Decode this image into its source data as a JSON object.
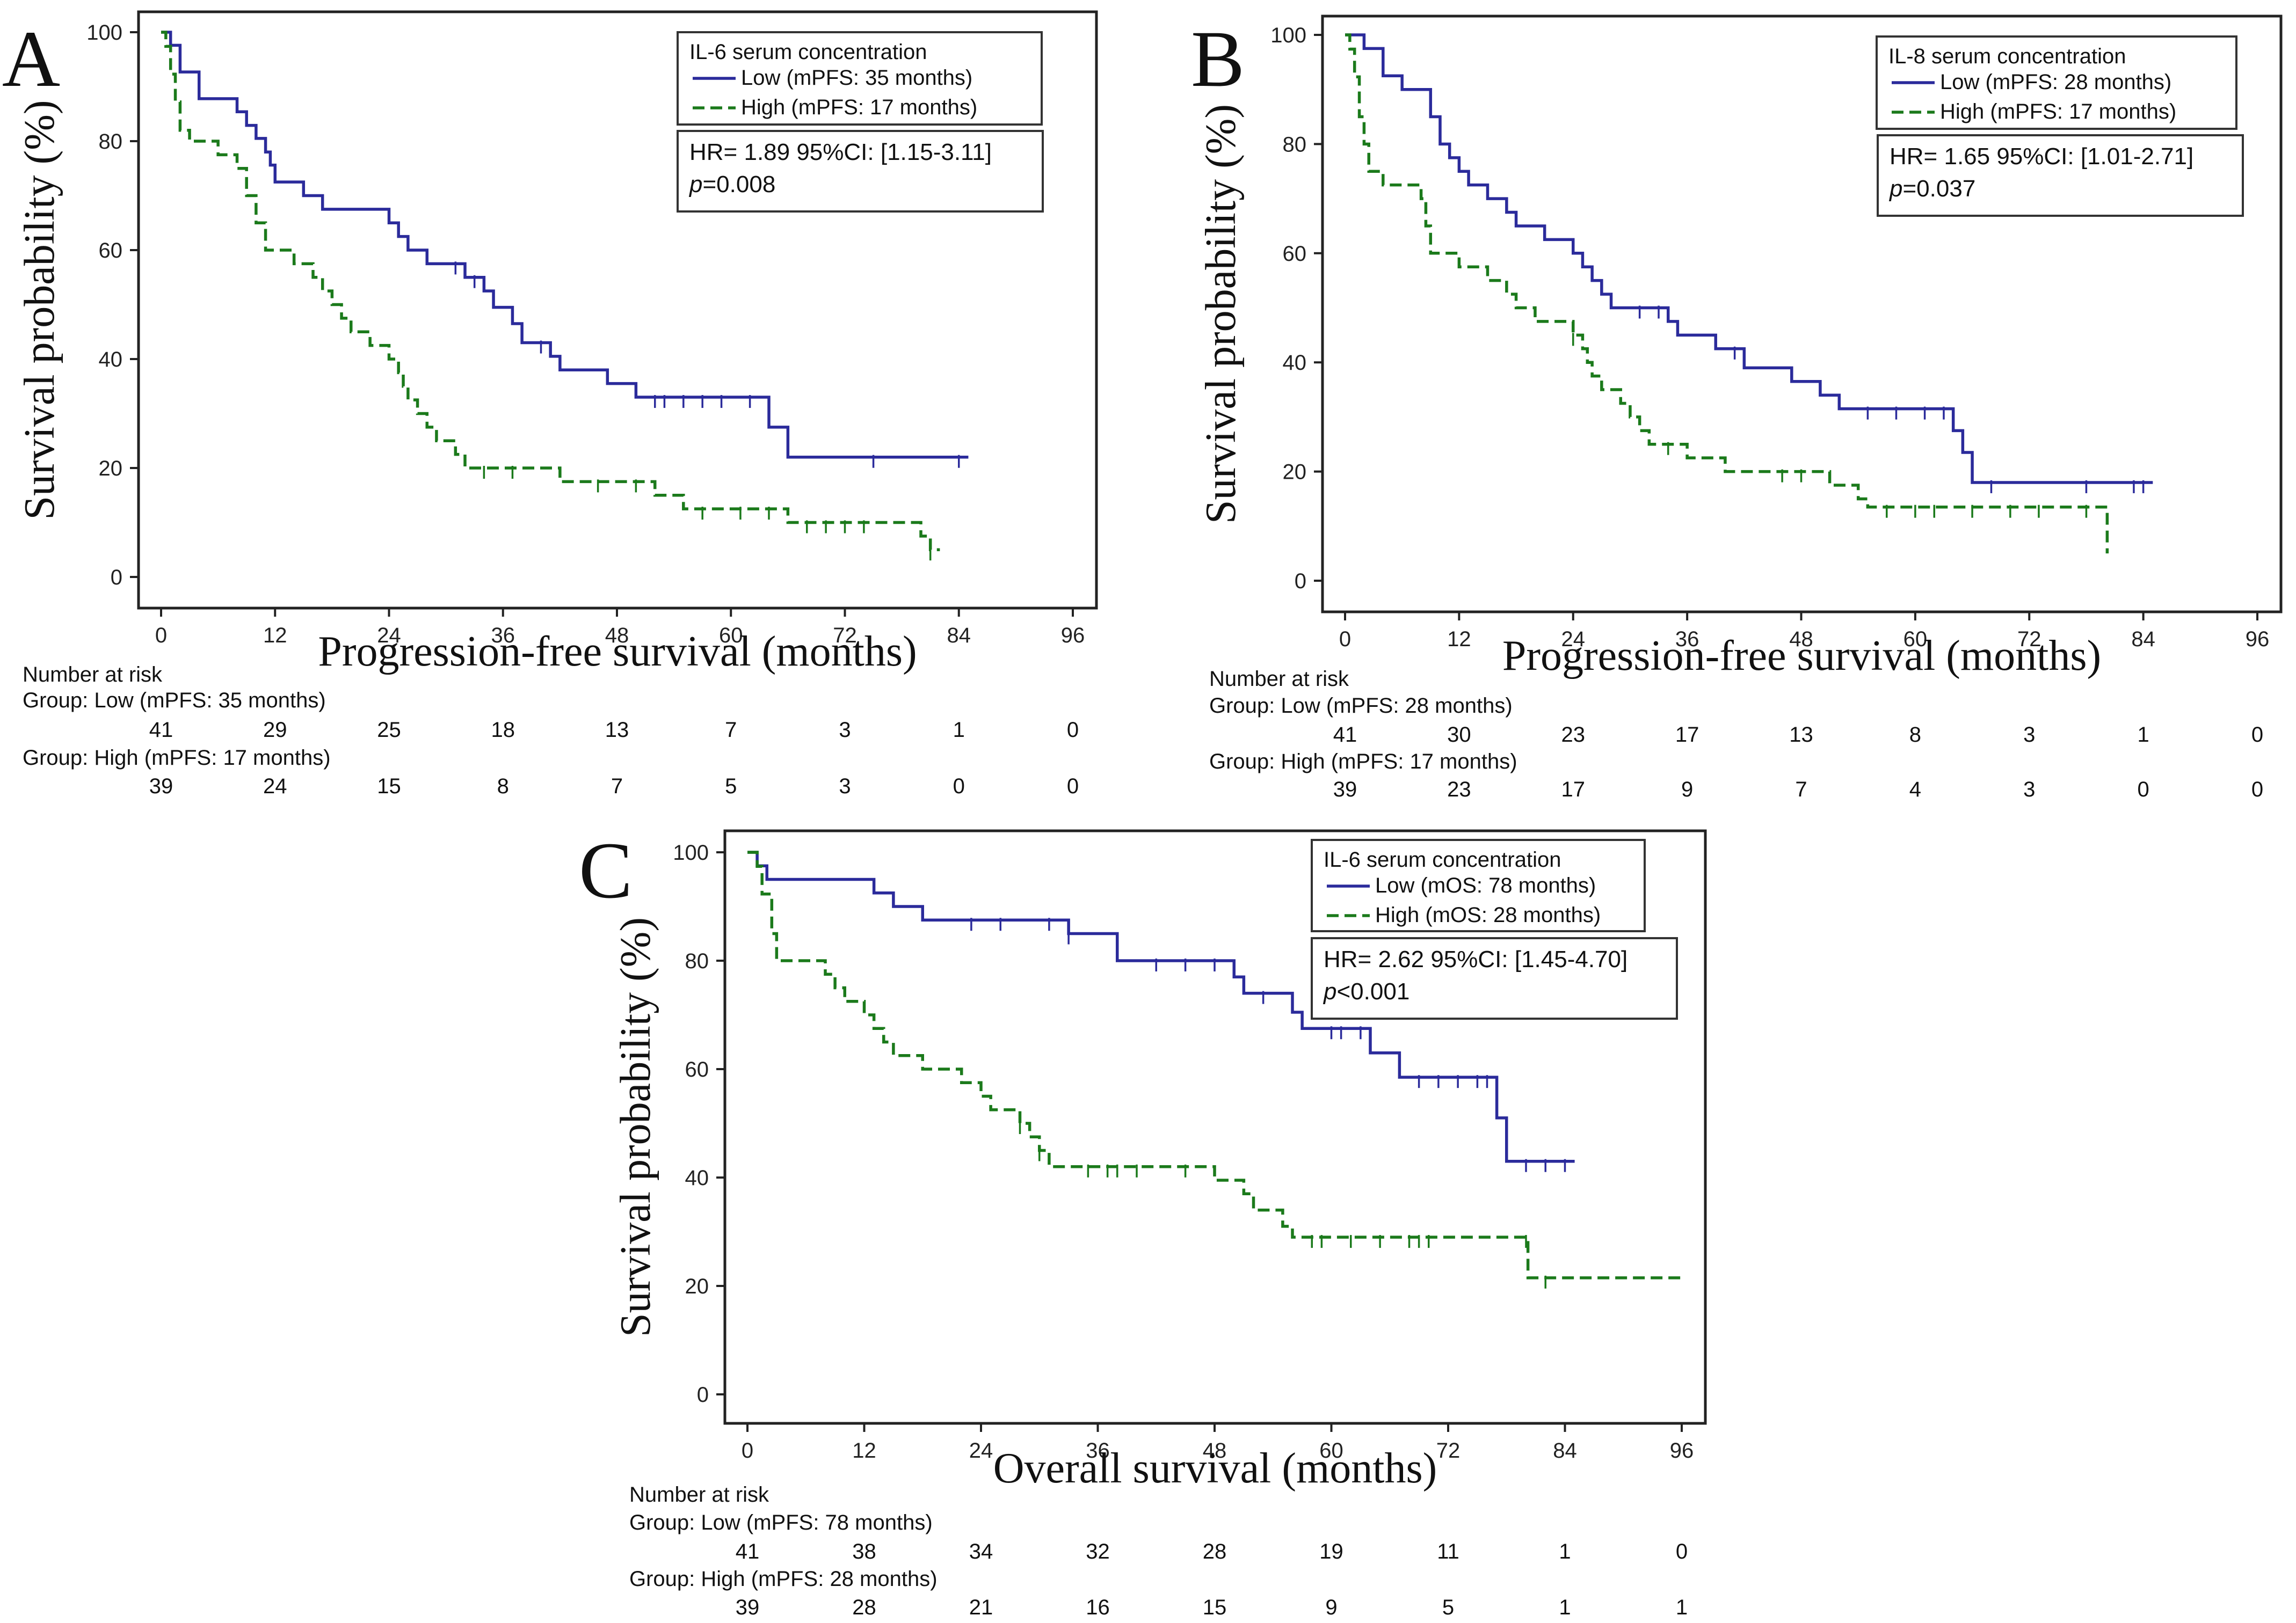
{
  "chart_data": [
    {
      "type": "line",
      "subtype": "kaplan-meier",
      "panel_label": "A",
      "xlabel": "Progression-free survival (months)",
      "ylabel": "Survival probability (%)",
      "xlim": [
        0,
        96
      ],
      "ylim": [
        0,
        100
      ],
      "xticks": [
        "0",
        "12",
        "24",
        "36",
        "48",
        "60",
        "72",
        "84",
        "96"
      ],
      "yticks": [
        "0",
        "20",
        "40",
        "60",
        "80",
        "100"
      ],
      "legend": {
        "title": "IL-6 serum concentration",
        "placement": "top-right",
        "entries": [
          "Low (mPFS: 35 months)",
          "High (mPFS: 17 months)"
        ]
      },
      "annotation": {
        "hr": "HR= 1.89 95%CI: [1.15-3.11]",
        "p_label": "p",
        "p_value": "=0.008"
      },
      "series": [
        {
          "name": "Low (mPFS: 35 months)",
          "color": "#2b2b9b",
          "dash": "solid",
          "steps": [
            [
              0,
              100
            ],
            [
              1,
              97.6
            ],
            [
              2,
              92.7
            ],
            [
              4,
              87.8
            ],
            [
              8,
              85.4
            ],
            [
              9,
              82.9
            ],
            [
              10,
              80.5
            ],
            [
              11,
              78
            ],
            [
              11.5,
              75.6
            ],
            [
              12,
              72.5
            ],
            [
              15,
              70
            ],
            [
              17,
              67.5
            ],
            [
              24,
              65
            ],
            [
              25,
              62.5
            ],
            [
              26,
              60
            ],
            [
              28,
              57.5
            ],
            [
              32,
              55
            ],
            [
              34,
              52.5
            ],
            [
              35,
              49.5
            ],
            [
              37,
              46.5
            ],
            [
              38,
              43
            ],
            [
              41,
              40.5
            ],
            [
              42,
              38
            ],
            [
              47,
              35.5
            ],
            [
              50,
              33
            ],
            [
              64,
              27.5
            ],
            [
              66,
              22
            ],
            [
              85,
              22
            ]
          ],
          "censor_x": [
            31,
            33,
            40,
            52,
            53,
            55,
            57,
            59,
            62,
            75,
            84
          ]
        },
        {
          "name": "High (mPFS: 17 months)",
          "color": "#1b7a1b",
          "dash": "dashed",
          "steps": [
            [
              0,
              100
            ],
            [
              0.5,
              97.4
            ],
            [
              1,
              92.3
            ],
            [
              1.5,
              87.2
            ],
            [
              2,
              82
            ],
            [
              3,
              80
            ],
            [
              6,
              77.5
            ],
            [
              8,
              75
            ],
            [
              9,
              70
            ],
            [
              10,
              65
            ],
            [
              11,
              60
            ],
            [
              14,
              57.5
            ],
            [
              16,
              55
            ],
            [
              17,
              52.5
            ],
            [
              18,
              50
            ],
            [
              19,
              47.5
            ],
            [
              20,
              45
            ],
            [
              22,
              42.5
            ],
            [
              24,
              40
            ],
            [
              25,
              37.5
            ],
            [
              25.5,
              35
            ],
            [
              26,
              32.5
            ],
            [
              27,
              30
            ],
            [
              28,
              27.5
            ],
            [
              29,
              25
            ],
            [
              31,
              22.5
            ],
            [
              32,
              20
            ],
            [
              42,
              17.5
            ],
            [
              52,
              15
            ],
            [
              55,
              12.5
            ],
            [
              66,
              10
            ],
            [
              80,
              7.5
            ],
            [
              81,
              5
            ],
            [
              82,
              5
            ]
          ],
          "censor_x": [
            34,
            37,
            46,
            50,
            57,
            61,
            64,
            68,
            70,
            72,
            74,
            81
          ]
        }
      ],
      "risk_table": {
        "title": "Number at risk",
        "groups": [
          {
            "label": "Group: Low (mPFS: 35 months)",
            "counts": [
              "41",
              "29",
              "25",
              "18",
              "13",
              "7",
              "3",
              "1",
              "0"
            ]
          },
          {
            "label": "Group: High (mPFS: 17 months)",
            "counts": [
              "39",
              "24",
              "15",
              "8",
              "7",
              "5",
              "3",
              "0",
              "0"
            ]
          }
        ]
      }
    },
    {
      "type": "line",
      "subtype": "kaplan-meier",
      "panel_label": "B",
      "xlabel": "Progression-free survival (months)",
      "ylabel": "Survival probability (%)",
      "xlim": [
        0,
        96
      ],
      "ylim": [
        0,
        100
      ],
      "xticks": [
        "0",
        "12",
        "24",
        "36",
        "48",
        "60",
        "72",
        "84",
        "96"
      ],
      "yticks": [
        "0",
        "20",
        "40",
        "60",
        "80",
        "100"
      ],
      "legend": {
        "title": "IL-8 serum concentration",
        "placement": "top-right",
        "entries": [
          "Low (mPFS: 28 months)",
          "High (mPFS: 17 months)"
        ]
      },
      "annotation": {
        "hr": "HR= 1.65 95%CI: [1.01-2.71]",
        "p_label": "p",
        "p_value": "=0.037"
      },
      "series": [
        {
          "name": "Low (mPFS: 28 months)",
          "color": "#2b2b9b",
          "dash": "solid",
          "steps": [
            [
              0,
              100
            ],
            [
              2,
              97.5
            ],
            [
              4,
              92.5
            ],
            [
              6,
              90
            ],
            [
              9,
              85
            ],
            [
              10,
              80
            ],
            [
              11,
              77.5
            ],
            [
              12,
              75
            ],
            [
              13,
              72.5
            ],
            [
              15,
              70
            ],
            [
              17,
              67.5
            ],
            [
              18,
              65
            ],
            [
              21,
              62.5
            ],
            [
              24,
              60
            ],
            [
              25,
              57.5
            ],
            [
              26,
              55
            ],
            [
              27,
              52.5
            ],
            [
              28,
              50
            ],
            [
              34,
              47.5
            ],
            [
              35,
              45
            ],
            [
              39,
              42.5
            ],
            [
              42,
              39
            ],
            [
              47,
              36.5
            ],
            [
              50,
              34
            ],
            [
              52,
              31.5
            ],
            [
              64,
              27.5
            ],
            [
              65,
              23.5
            ],
            [
              66,
              18
            ],
            [
              85,
              18
            ]
          ],
          "censor_x": [
            31,
            33,
            41,
            55,
            58,
            61,
            63,
            68,
            78,
            83,
            84
          ]
        },
        {
          "name": "High (mPFS: 17 months)",
          "color": "#1b7a1b",
          "dash": "dashed",
          "steps": [
            [
              0,
              100
            ],
            [
              0.5,
              97.4
            ],
            [
              1,
              92.3
            ],
            [
              1.5,
              85
            ],
            [
              2,
              80
            ],
            [
              2.5,
              75
            ],
            [
              4,
              72.5
            ],
            [
              8,
              70
            ],
            [
              8.5,
              65
            ],
            [
              9,
              60
            ],
            [
              12,
              57.5
            ],
            [
              15,
              55
            ],
            [
              17,
              52.5
            ],
            [
              18,
              50
            ],
            [
              20,
              47.5
            ],
            [
              24,
              45
            ],
            [
              25,
              42.5
            ],
            [
              25.5,
              40
            ],
            [
              26,
              37.5
            ],
            [
              27,
              35
            ],
            [
              29,
              32.5
            ],
            [
              30,
              30
            ],
            [
              31,
              27.5
            ],
            [
              32,
              25
            ],
            [
              36,
              22.5
            ],
            [
              40,
              20
            ],
            [
              51,
              17.5
            ],
            [
              54,
              15
            ],
            [
              55,
              13.5
            ],
            [
              80,
              13.5
            ],
            [
              80.2,
              5
            ]
          ],
          "censor_x": [
            24,
            34,
            46,
            48,
            57,
            60,
            62,
            66,
            70,
            73,
            78
          ]
        }
      ],
      "risk_table": {
        "title": "Number at risk",
        "groups": [
          {
            "label": "Group: Low (mPFS: 28 months)",
            "counts": [
              "41",
              "30",
              "23",
              "17",
              "13",
              "8",
              "3",
              "1",
              "0"
            ]
          },
          {
            "label": "Group: High (mPFS: 17 months)",
            "counts": [
              "39",
              "23",
              "17",
              "9",
              "7",
              "4",
              "3",
              "0",
              "0"
            ]
          }
        ]
      }
    },
    {
      "type": "line",
      "subtype": "kaplan-meier",
      "panel_label": "C",
      "xlabel": "Overall survival (months)",
      "ylabel": "Survival probability (%)",
      "xlim": [
        0,
        96
      ],
      "ylim": [
        0,
        100
      ],
      "xticks": [
        "0",
        "12",
        "24",
        "36",
        "48",
        "60",
        "72",
        "84",
        "96"
      ],
      "yticks": [
        "0",
        "20",
        "40",
        "60",
        "80",
        "100"
      ],
      "legend": {
        "title": "IL-6 serum concentration",
        "placement": "top-right",
        "entries": [
          "Low (mOS: 78 months)",
          "High (mOS: 28 months)"
        ]
      },
      "annotation": {
        "hr": "HR= 2.62 95%CI: [1.45-4.70]",
        "p_label": "p",
        "p_value": "<0.001"
      },
      "series": [
        {
          "name": "Low (mOS: 78 months)",
          "color": "#2b2b9b",
          "dash": "solid",
          "steps": [
            [
              0,
              100
            ],
            [
              1,
              97.5
            ],
            [
              2,
              95
            ],
            [
              13,
              92.5
            ],
            [
              15,
              90
            ],
            [
              18,
              87.5
            ],
            [
              33,
              85
            ],
            [
              38,
              80
            ],
            [
              50,
              77
            ],
            [
              51,
              74
            ],
            [
              56,
              70.5
            ],
            [
              57,
              67.5
            ],
            [
              64,
              63
            ],
            [
              67,
              58.5
            ],
            [
              77,
              51
            ],
            [
              78,
              43
            ],
            [
              85,
              43
            ]
          ],
          "censor_x": [
            23,
            26,
            31,
            33,
            42,
            45,
            48,
            53,
            60,
            61,
            63,
            69,
            71,
            73,
            75,
            76,
            80,
            82,
            84
          ]
        },
        {
          "name": "High (mOS: 28 months)",
          "color": "#1b7a1b",
          "dash": "dashed",
          "steps": [
            [
              0,
              100
            ],
            [
              1,
              97.4
            ],
            [
              1.5,
              92.3
            ],
            [
              2.5,
              85
            ],
            [
              3,
              80
            ],
            [
              8,
              77.5
            ],
            [
              9,
              75
            ],
            [
              10,
              72.5
            ],
            [
              12,
              70
            ],
            [
              13,
              67.5
            ],
            [
              14,
              65
            ],
            [
              15,
              62.5
            ],
            [
              18,
              60
            ],
            [
              22,
              57.5
            ],
            [
              24,
              55
            ],
            [
              25,
              52.5
            ],
            [
              28,
              50
            ],
            [
              29,
              47.5
            ],
            [
              30,
              45
            ],
            [
              31,
              42
            ],
            [
              48,
              39.5
            ],
            [
              51,
              37
            ],
            [
              52,
              34
            ],
            [
              55,
              31
            ],
            [
              56,
              29
            ],
            [
              80,
              29
            ],
            [
              80.2,
              21.5
            ],
            [
              96,
              21.5
            ]
          ],
          "censor_x": [
            28,
            30,
            35,
            37,
            38,
            40,
            45,
            58,
            59,
            62,
            65,
            68,
            69,
            70,
            80,
            82
          ]
        }
      ],
      "risk_table": {
        "title": "Number at risk",
        "groups": [
          {
            "label": "Group: Low (mPFS: 78 months)",
            "counts": [
              "41",
              "38",
              "34",
              "32",
              "28",
              "19",
              "11",
              "1",
              "0"
            ]
          },
          {
            "label": "Group: High (mPFS: 28 months)",
            "counts": [
              "39",
              "28",
              "21",
              "16",
              "15",
              "9",
              "5",
              "1",
              "1"
            ]
          }
        ]
      }
    }
  ]
}
